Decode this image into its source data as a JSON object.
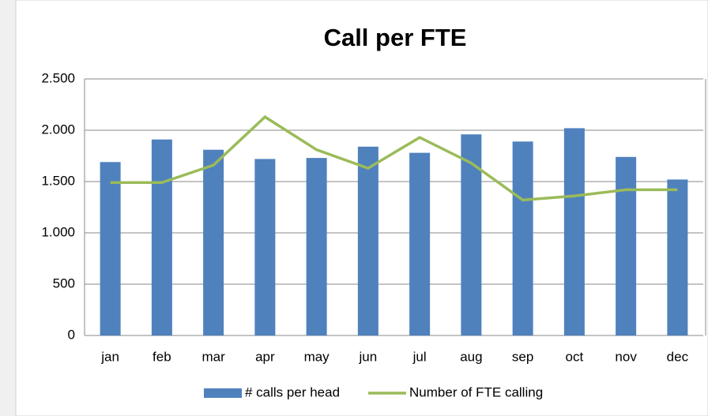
{
  "chart_data": {
    "type": "bar_line",
    "title": "Call per FTE",
    "categories": [
      "jan",
      "feb",
      "mar",
      "apr",
      "may",
      "jun",
      "jul",
      "aug",
      "sep",
      "oct",
      "nov",
      "dec"
    ],
    "series": [
      {
        "name": "# calls per head",
        "type": "bar",
        "color": "#4f81bd",
        "values": [
          1690,
          1910,
          1810,
          1720,
          1730,
          1840,
          1780,
          1960,
          1890,
          2020,
          1740,
          1520
        ]
      },
      {
        "name": "Number of FTE calling",
        "type": "line",
        "color": "#9bbb59",
        "values": [
          1490,
          1490,
          1660,
          2130,
          1810,
          1630,
          1930,
          1680,
          1320,
          1360,
          1420,
          1420
        ]
      }
    ],
    "ylim": [
      0,
      2500
    ],
    "yticks": [
      0,
      500,
      {
        "value": 1000,
        "label": "1.000"
      },
      {
        "value": 1500,
        "label": "1.500"
      },
      {
        "value": 2000,
        "label": "2.000"
      },
      {
        "value": 2500,
        "label": "2.500"
      }
    ],
    "grid": true,
    "legend": "bottom"
  }
}
